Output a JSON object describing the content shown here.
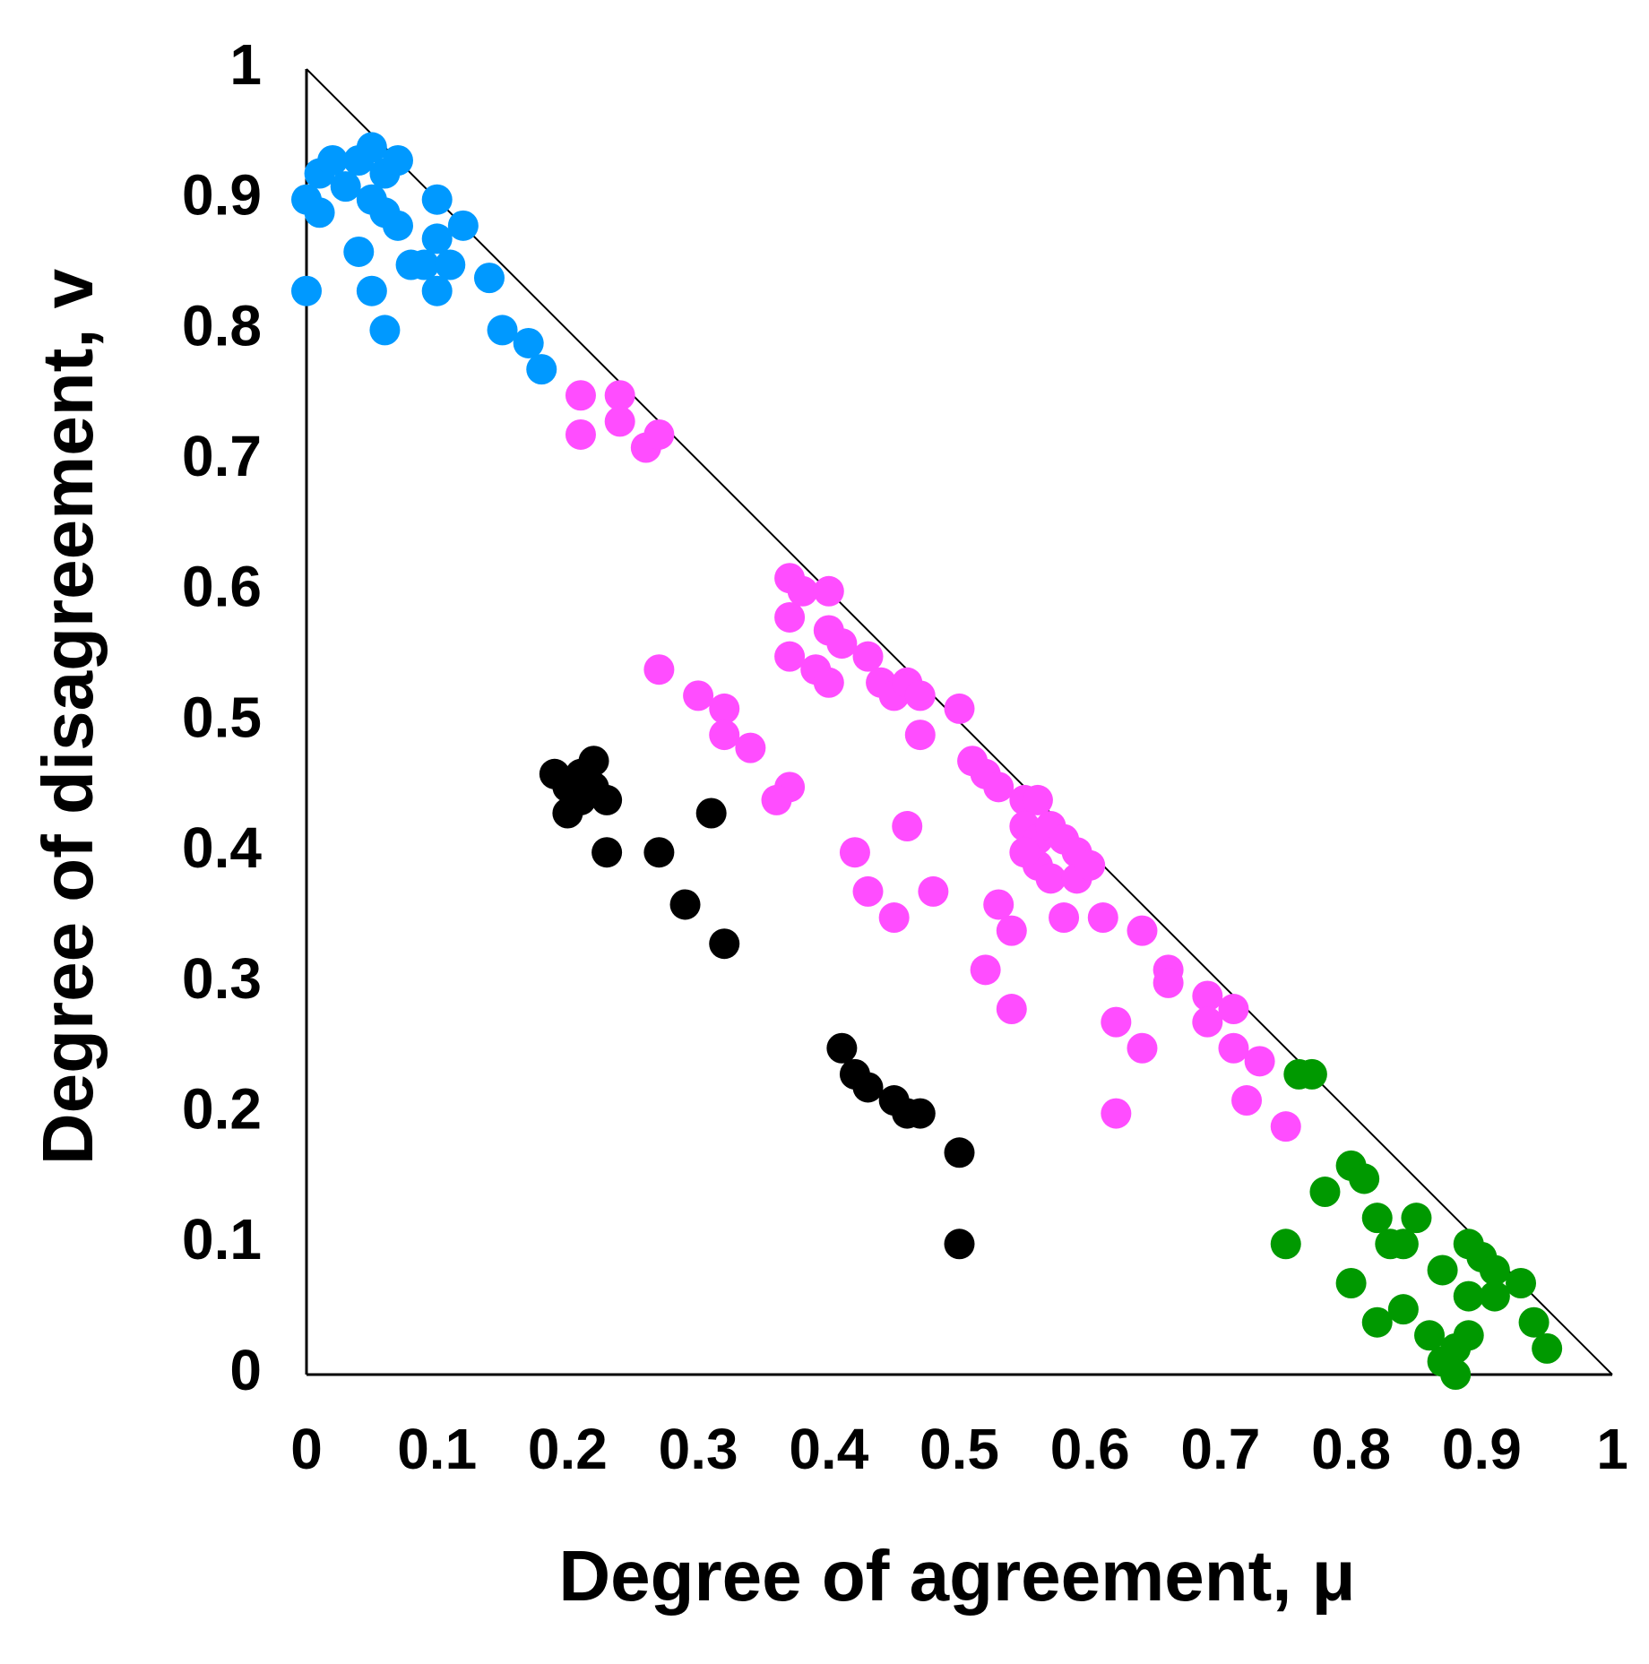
{
  "chart_data": {
    "type": "scatter",
    "xlabel": "Degree of agreement, μ",
    "ylabel": "Degree of disagreement, v",
    "xlim": [
      0,
      1
    ],
    "ylim": [
      0,
      1
    ],
    "xticks": [
      0,
      0.1,
      0.2,
      0.3,
      0.4,
      0.5,
      0.6,
      0.7,
      0.8,
      0.9,
      1
    ],
    "yticks": [
      0,
      0.1,
      0.2,
      0.3,
      0.4,
      0.5,
      0.6,
      0.7,
      0.8,
      0.9,
      1
    ],
    "grid": false,
    "series": [
      {
        "color": "#0099ff",
        "x": [
          0,
          0.01,
          0.02,
          0.01,
          0.03,
          0.04,
          0.05,
          0.06,
          0.07,
          0.05,
          0.06,
          0.07,
          0.04,
          0.1,
          0.12,
          0.1,
          0.09,
          0.08,
          0.11,
          0,
          0.05,
          0.1,
          0.06,
          0.14,
          0.15,
          0.17,
          0.18
        ],
        "y": [
          0.9,
          0.92,
          0.93,
          0.89,
          0.91,
          0.93,
          0.94,
          0.92,
          0.93,
          0.9,
          0.89,
          0.88,
          0.86,
          0.9,
          0.88,
          0.87,
          0.85,
          0.85,
          0.85,
          0.83,
          0.83,
          0.83,
          0.8,
          0.84,
          0.8,
          0.79,
          0.77
        ]
      },
      {
        "color": "#ff4dff",
        "x": [
          0.21,
          0.21,
          0.24,
          0.24,
          0.26,
          0.27,
          0.37,
          0.37,
          0.38,
          0.4,
          0.4,
          0.41,
          0.37,
          0.39,
          0.4,
          0.43,
          0.44,
          0.45,
          0.46,
          0.47,
          0.5,
          0.47,
          0.27,
          0.3,
          0.32,
          0.32,
          0.34,
          0.37,
          0.36,
          0.51,
          0.52,
          0.53,
          0.55,
          0.56,
          0.55,
          0.56,
          0.57,
          0.58,
          0.59,
          0.56,
          0.55,
          0.57,
          0.59,
          0.6,
          0.46,
          0.42,
          0.43,
          0.45,
          0.48,
          0.53,
          0.54,
          0.58,
          0.61,
          0.64,
          0.52,
          0.54,
          0.66,
          0.66,
          0.69,
          0.71,
          0.69,
          0.71,
          0.73,
          0.72,
          0.75,
          0.62,
          0.64,
          0.62
        ],
        "y": [
          0.75,
          0.72,
          0.75,
          0.73,
          0.71,
          0.72,
          0.61,
          0.58,
          0.6,
          0.6,
          0.57,
          0.56,
          0.55,
          0.54,
          0.53,
          0.55,
          0.53,
          0.52,
          0.53,
          0.52,
          0.51,
          0.49,
          0.54,
          0.52,
          0.51,
          0.49,
          0.48,
          0.45,
          0.44,
          0.47,
          0.46,
          0.45,
          0.44,
          0.44,
          0.42,
          0.41,
          0.42,
          0.41,
          0.4,
          0.39,
          0.4,
          0.38,
          0.38,
          0.39,
          0.42,
          0.4,
          0.37,
          0.35,
          0.37,
          0.36,
          0.34,
          0.35,
          0.35,
          0.34,
          0.31,
          0.28,
          0.31,
          0.3,
          0.29,
          0.28,
          0.27,
          0.25,
          0.24,
          0.21,
          0.19,
          0.27,
          0.25,
          0.2
        ]
      },
      {
        "color": "#009900",
        "x": [
          0.76,
          0.77,
          0.8,
          0.81,
          0.78,
          0.75,
          0.82,
          0.83,
          0.85,
          0.84,
          0.87,
          0.89,
          0.9,
          0.91,
          0.93,
          0.8,
          0.82,
          0.84,
          0.86,
          0.88,
          0.87,
          0.89,
          0.89,
          0.91,
          0.94,
          0.95,
          0.88
        ],
        "y": [
          0.23,
          0.23,
          0.16,
          0.15,
          0.14,
          0.1,
          0.12,
          0.1,
          0.12,
          0.1,
          0.08,
          0.1,
          0.09,
          0.08,
          0.07,
          0.07,
          0.04,
          0.05,
          0.03,
          0.02,
          0.01,
          0.03,
          0.06,
          0.06,
          0.04,
          0.02,
          0
        ]
      },
      {
        "color": "#000000",
        "x": [
          0.19,
          0.2,
          0.21,
          0.22,
          0.2,
          0.21,
          0.22,
          0.23,
          0.23,
          0.27,
          0.31,
          0.29,
          0.32,
          0.41,
          0.42,
          0.43,
          0.45,
          0.46,
          0.47,
          0.5,
          0.5
        ],
        "y": [
          0.46,
          0.45,
          0.46,
          0.47,
          0.43,
          0.44,
          0.45,
          0.44,
          0.4,
          0.4,
          0.43,
          0.36,
          0.33,
          0.25,
          0.23,
          0.22,
          0.21,
          0.2,
          0.2,
          0.17,
          0.1
        ]
      }
    ]
  }
}
